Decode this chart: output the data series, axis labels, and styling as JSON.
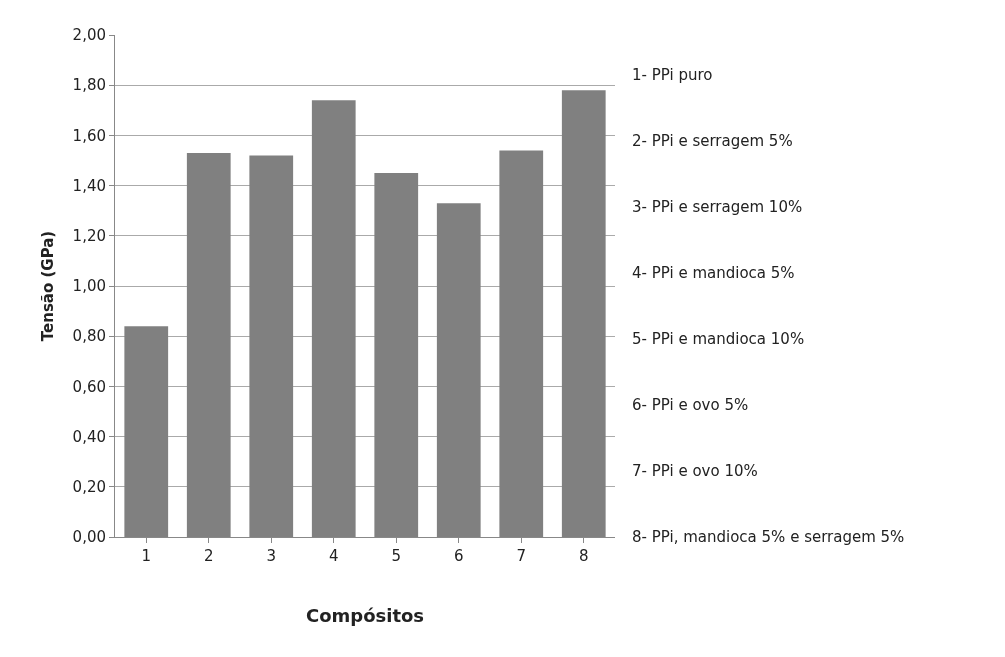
{
  "chart_data": {
    "type": "bar",
    "xlabel": "Compósitos",
    "ylabel": "Tensão (GPa)",
    "categories": [
      "1",
      "2",
      "3",
      "4",
      "5",
      "6",
      "7",
      "8"
    ],
    "values": [
      0.84,
      1.53,
      1.52,
      1.74,
      1.45,
      1.33,
      1.54,
      1.78
    ],
    "color": "#808080",
    "ylim": [
      0,
      2
    ],
    "yticks": [
      {
        "value": 0,
        "label": "0,00"
      },
      {
        "value": 0.2,
        "label": "0,20"
      },
      {
        "value": 0.4,
        "label": "0,40"
      },
      {
        "value": 0.6,
        "label": "0,60"
      },
      {
        "value": 0.8,
        "label": "0,80"
      },
      {
        "value": 1.0,
        "label": "1,00"
      },
      {
        "value": 1.2,
        "label": "1,20"
      },
      {
        "value": 1.4,
        "label": "1,40"
      },
      {
        "value": 1.6,
        "label": "1,60"
      },
      {
        "value": 1.8,
        "label": "1,80"
      },
      {
        "value": 2.0,
        "label": "2,00"
      }
    ],
    "grid": "y",
    "annotations": [
      "1- PPi puro",
      "2- PPi e serragem 5%",
      "3- PPi e serragem 10%",
      "4- PPi e mandioca 5%",
      "5- PPi e mandioca 10%",
      "6- PPi e ovo 5%",
      "7- PPi e ovo 10%",
      "8- PPi, mandioca 5% e serragem 5%"
    ]
  }
}
